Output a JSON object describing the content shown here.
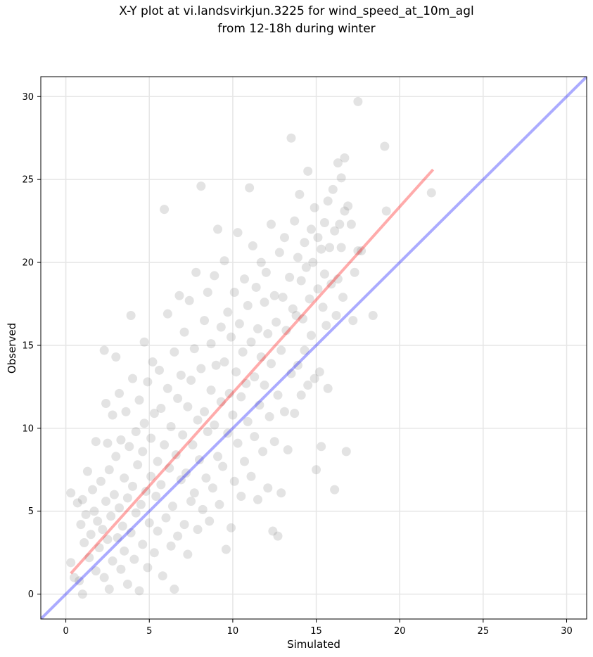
{
  "chart_data": {
    "type": "scatter",
    "title_line1": "X-Y plot at vi.landsvirkjun.3225 for wind_speed_at_10m_agl",
    "title_line2": "from 12-18h during winter",
    "xlabel": "Simulated",
    "ylabel": "Observed",
    "xlim": [
      -1.5,
      31.2
    ],
    "ylim": [
      -1.5,
      31.2
    ],
    "xticks": [
      0,
      5,
      10,
      15,
      20,
      25,
      30
    ],
    "yticks": [
      0,
      5,
      10,
      15,
      20,
      25,
      30
    ],
    "grid": true,
    "point_color": "#808080",
    "identity_line": {
      "color": "#0000ff",
      "x": [
        -1.5,
        31.2
      ],
      "y": [
        -1.5,
        31.2
      ]
    },
    "fit_line": {
      "color": "#ff0000",
      "x": [
        0.3,
        22.0
      ],
      "y": [
        1.25,
        25.6
      ]
    },
    "series": [
      {
        "points": [
          [
            0.3,
            6.1
          ],
          [
            0.3,
            1.9
          ],
          [
            0.5,
            1.0
          ],
          [
            0.7,
            5.5
          ],
          [
            0.8,
            0.8
          ],
          [
            0.9,
            4.2
          ],
          [
            1.0,
            0.0
          ],
          [
            1.0,
            5.7
          ],
          [
            1.1,
            3.1
          ],
          [
            1.2,
            4.8
          ],
          [
            1.3,
            7.4
          ],
          [
            1.4,
            2.2
          ],
          [
            1.5,
            3.6
          ],
          [
            1.6,
            6.3
          ],
          [
            1.7,
            5.0
          ],
          [
            1.8,
            1.4
          ],
          [
            1.8,
            9.2
          ],
          [
            1.9,
            4.4
          ],
          [
            2.0,
            2.8
          ],
          [
            2.1,
            6.8
          ],
          [
            2.2,
            3.9
          ],
          [
            2.3,
            14.7
          ],
          [
            2.3,
            1.0
          ],
          [
            2.4,
            11.5
          ],
          [
            2.4,
            5.6
          ],
          [
            2.5,
            9.1
          ],
          [
            2.5,
            3.3
          ],
          [
            2.6,
            7.5
          ],
          [
            2.6,
            0.3
          ],
          [
            2.7,
            4.7
          ],
          [
            2.8,
            10.8
          ],
          [
            2.8,
            2.0
          ],
          [
            2.9,
            6.0
          ],
          [
            3.0,
            14.3
          ],
          [
            3.0,
            8.3
          ],
          [
            3.1,
            3.4
          ],
          [
            3.2,
            5.2
          ],
          [
            3.2,
            12.1
          ],
          [
            3.3,
            1.5
          ],
          [
            3.3,
            9.3
          ],
          [
            3.4,
            4.1
          ],
          [
            3.5,
            7.0
          ],
          [
            3.5,
            2.6
          ],
          [
            3.6,
            11.0
          ],
          [
            3.7,
            5.8
          ],
          [
            3.7,
            0.6
          ],
          [
            3.8,
            8.9
          ],
          [
            3.9,
            16.8
          ],
          [
            3.9,
            3.7
          ],
          [
            4.0,
            6.5
          ],
          [
            4.0,
            13.0
          ],
          [
            4.1,
            2.1
          ],
          [
            4.2,
            9.8
          ],
          [
            4.2,
            4.9
          ],
          [
            4.3,
            7.8
          ],
          [
            4.4,
            0.2
          ],
          [
            4.4,
            11.7
          ],
          [
            4.5,
            5.4
          ],
          [
            4.6,
            3.0
          ],
          [
            4.6,
            8.6
          ],
          [
            4.7,
            15.2
          ],
          [
            4.7,
            10.3
          ],
          [
            4.8,
            6.2
          ],
          [
            4.9,
            1.6
          ],
          [
            4.9,
            12.8
          ],
          [
            5.0,
            4.3
          ],
          [
            5.1,
            9.4
          ],
          [
            5.1,
            7.1
          ],
          [
            5.2,
            14.0
          ],
          [
            5.3,
            2.5
          ],
          [
            5.3,
            10.9
          ],
          [
            5.4,
            5.9
          ],
          [
            5.5,
            8.0
          ],
          [
            5.5,
            3.8
          ],
          [
            5.6,
            13.5
          ],
          [
            5.7,
            11.2
          ],
          [
            5.7,
            6.6
          ],
          [
            5.8,
            1.1
          ],
          [
            5.9,
            23.2
          ],
          [
            5.9,
            9.0
          ],
          [
            6.0,
            4.6
          ],
          [
            6.1,
            16.9
          ],
          [
            6.1,
            12.4
          ],
          [
            6.2,
            7.6
          ],
          [
            6.3,
            2.9
          ],
          [
            6.3,
            10.1
          ],
          [
            6.4,
            5.3
          ],
          [
            6.5,
            14.6
          ],
          [
            6.5,
            0.3
          ],
          [
            6.6,
            8.4
          ],
          [
            6.7,
            11.8
          ],
          [
            6.7,
            3.5
          ],
          [
            6.8,
            18.0
          ],
          [
            6.9,
            6.9
          ],
          [
            6.9,
            13.2
          ],
          [
            7.0,
            9.6
          ],
          [
            7.1,
            4.2
          ],
          [
            7.1,
            15.8
          ],
          [
            7.2,
            7.3
          ],
          [
            7.3,
            11.3
          ],
          [
            7.3,
            2.4
          ],
          [
            7.4,
            17.7
          ],
          [
            7.5,
            5.6
          ],
          [
            7.5,
            12.9
          ],
          [
            7.6,
            9.0
          ],
          [
            7.7,
            14.8
          ],
          [
            7.7,
            6.1
          ],
          [
            7.8,
            19.4
          ],
          [
            7.9,
            10.5
          ],
          [
            7.9,
            3.9
          ],
          [
            8.0,
            8.1
          ],
          [
            8.1,
            24.6
          ],
          [
            8.1,
            13.6
          ],
          [
            8.2,
            5.1
          ],
          [
            8.3,
            11.0
          ],
          [
            8.3,
            16.5
          ],
          [
            8.4,
            7.0
          ],
          [
            8.5,
            18.2
          ],
          [
            8.5,
            9.8
          ],
          [
            8.6,
            4.4
          ],
          [
            8.7,
            12.3
          ],
          [
            8.7,
            15.1
          ],
          [
            8.8,
            6.4
          ],
          [
            8.9,
            19.2
          ],
          [
            8.9,
            10.2
          ],
          [
            9.0,
            13.8
          ],
          [
            9.1,
            8.3
          ],
          [
            9.1,
            22.0
          ],
          [
            9.2,
            5.4
          ],
          [
            9.3,
            16.1
          ],
          [
            9.3,
            11.6
          ],
          [
            9.4,
            7.7
          ],
          [
            9.5,
            20.1
          ],
          [
            9.5,
            14.0
          ],
          [
            9.6,
            2.7
          ],
          [
            9.7,
            9.7
          ],
          [
            9.7,
            17.0
          ],
          [
            9.8,
            12.1
          ],
          [
            9.9,
            4.0
          ],
          [
            9.9,
            15.5
          ],
          [
            10.0,
            10.8
          ],
          [
            10.1,
            18.2
          ],
          [
            10.1,
            6.8
          ],
          [
            10.2,
            13.4
          ],
          [
            10.3,
            21.8
          ],
          [
            10.3,
            9.1
          ],
          [
            10.4,
            16.3
          ],
          [
            10.5,
            11.9
          ],
          [
            10.5,
            5.9
          ],
          [
            10.6,
            14.6
          ],
          [
            10.7,
            19.0
          ],
          [
            10.7,
            8.0
          ],
          [
            10.8,
            12.7
          ],
          [
            10.9,
            17.4
          ],
          [
            10.9,
            10.4
          ],
          [
            11.0,
            24.5
          ],
          [
            11.1,
            15.2
          ],
          [
            11.1,
            7.1
          ],
          [
            11.2,
            21.0
          ],
          [
            11.3,
            13.1
          ],
          [
            11.3,
            9.5
          ],
          [
            11.4,
            18.5
          ],
          [
            11.5,
            16.0
          ],
          [
            11.5,
            5.7
          ],
          [
            11.6,
            11.4
          ],
          [
            11.7,
            20.0
          ],
          [
            11.7,
            14.3
          ],
          [
            11.8,
            8.6
          ],
          [
            11.9,
            17.6
          ],
          [
            11.9,
            12.6
          ],
          [
            12.0,
            19.4
          ],
          [
            12.1,
            6.4
          ],
          [
            12.1,
            15.7
          ],
          [
            12.2,
            10.7
          ],
          [
            12.3,
            22.3
          ],
          [
            12.3,
            13.9
          ],
          [
            12.4,
            3.8
          ],
          [
            12.5,
            18.0
          ],
          [
            12.5,
            9.2
          ],
          [
            12.6,
            16.4
          ],
          [
            12.7,
            12.0
          ],
          [
            12.7,
            3.5
          ],
          [
            12.8,
            20.6
          ],
          [
            12.9,
            14.7
          ],
          [
            12.9,
            6.1
          ],
          [
            13.0,
            17.9
          ],
          [
            13.1,
            11.0
          ],
          [
            13.1,
            21.5
          ],
          [
            13.2,
            15.9
          ],
          [
            13.3,
            8.7
          ],
          [
            13.4,
            19.1
          ],
          [
            13.5,
            27.5
          ],
          [
            13.5,
            13.3
          ],
          [
            13.6,
            17.2
          ],
          [
            13.7,
            22.5
          ],
          [
            13.7,
            10.9
          ],
          [
            13.8,
            16.8
          ],
          [
            13.9,
            20.3
          ],
          [
            13.9,
            13.8
          ],
          [
            14.0,
            24.1
          ],
          [
            14.1,
            18.9
          ],
          [
            14.1,
            12.0
          ],
          [
            14.2,
            16.6
          ],
          [
            14.3,
            21.2
          ],
          [
            14.3,
            14.7
          ],
          [
            14.4,
            19.7
          ],
          [
            14.5,
            25.5
          ],
          [
            14.5,
            12.6
          ],
          [
            14.6,
            17.8
          ],
          [
            14.7,
            22.0
          ],
          [
            14.7,
            15.6
          ],
          [
            14.8,
            20.0
          ],
          [
            14.9,
            13.0
          ],
          [
            14.9,
            23.3
          ],
          [
            15.0,
            7.5
          ],
          [
            15.1,
            18.4
          ],
          [
            15.1,
            21.5
          ],
          [
            15.2,
            13.4
          ],
          [
            15.3,
            8.9
          ],
          [
            15.3,
            20.8
          ],
          [
            15.4,
            17.3
          ],
          [
            15.5,
            22.4
          ],
          [
            15.5,
            19.3
          ],
          [
            15.6,
            16.2
          ],
          [
            15.7,
            23.7
          ],
          [
            15.7,
            12.4
          ],
          [
            15.8,
            20.9
          ],
          [
            15.9,
            18.7
          ],
          [
            16.0,
            24.4
          ],
          [
            16.1,
            6.3
          ],
          [
            16.1,
            21.9
          ],
          [
            16.2,
            16.8
          ],
          [
            16.3,
            26.0
          ],
          [
            16.3,
            19.0
          ],
          [
            16.4,
            22.3
          ],
          [
            16.5,
            25.1
          ],
          [
            16.5,
            20.9
          ],
          [
            16.6,
            17.9
          ],
          [
            16.7,
            26.3
          ],
          [
            16.7,
            23.1
          ],
          [
            16.8,
            8.6
          ],
          [
            16.9,
            23.4
          ],
          [
            17.1,
            22.3
          ],
          [
            17.2,
            16.5
          ],
          [
            17.3,
            19.4
          ],
          [
            17.5,
            29.7
          ],
          [
            17.5,
            20.7
          ],
          [
            17.7,
            20.7
          ],
          [
            18.4,
            16.8
          ],
          [
            19.1,
            27.0
          ],
          [
            19.2,
            23.1
          ],
          [
            21.9,
            24.2
          ]
        ]
      }
    ]
  }
}
